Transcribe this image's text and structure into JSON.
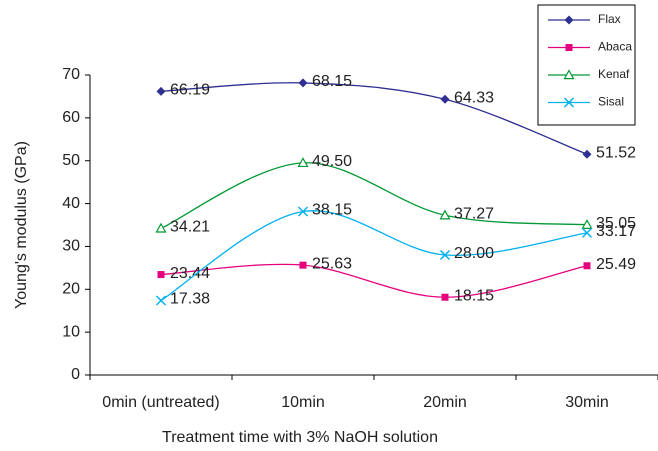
{
  "chart_data": {
    "type": "line",
    "x_label": "Treatment time with 3% NaOH solution",
    "y_label": "Young's modulus (GPa)",
    "categories": [
      "0min (untreated)",
      "10min",
      "20min",
      "30min"
    ],
    "series": [
      {
        "name": "Flax",
        "color": "#2e3192",
        "marker": "diamond",
        "values": [
          66.19,
          68.15,
          64.33,
          51.52
        ],
        "value_labels": [
          "66.19",
          "68.15",
          "64.33",
          "51.52"
        ]
      },
      {
        "name": "Abaca",
        "color": "#e6007e",
        "marker": "square",
        "values": [
          23.44,
          25.63,
          18.15,
          25.49
        ],
        "value_labels": [
          "23.44",
          "25.63",
          "18.15",
          "25.49"
        ]
      },
      {
        "name": "Kenaf",
        "color": "#009933",
        "marker": "triangle",
        "values": [
          34.21,
          49.5,
          37.27,
          35.05
        ],
        "value_labels": [
          "34.21",
          "49.50",
          "37.27",
          "35.05"
        ]
      },
      {
        "name": "Sisal",
        "color": "#00b0f0",
        "marker": "x",
        "values": [
          17.38,
          38.15,
          28.0,
          33.17
        ],
        "value_labels": [
          "17.38",
          "38.15",
          "28.00",
          "33.17"
        ]
      }
    ],
    "ylim": [
      0,
      70
    ],
    "yticks": [
      0,
      10,
      20,
      30,
      40,
      50,
      60,
      70
    ],
    "legend": "top-right"
  }
}
